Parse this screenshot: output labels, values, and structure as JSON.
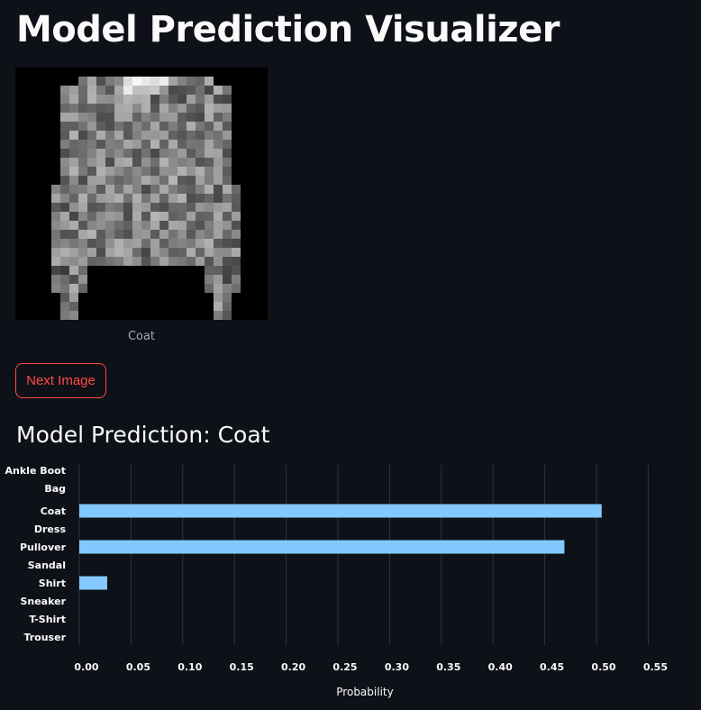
{
  "header": {
    "title": "Model Prediction Visualizer"
  },
  "image": {
    "caption": "Coat",
    "icon": "fashion-mnist-coat-image"
  },
  "controls": {
    "next_label": "Next Image"
  },
  "prediction": {
    "heading": "Model Prediction: Coat"
  },
  "colors": {
    "accent": "#ff4b4b",
    "bar": "#83c9ff",
    "background": "#0e1117",
    "grid": "#31333f"
  },
  "chart_data": {
    "type": "bar",
    "orientation": "horizontal",
    "categories": [
      "Ankle Boot",
      "Bag",
      "Coat",
      "Dress",
      "Pullover",
      "Sandal",
      "Shirt",
      "Sneaker",
      "T-Shirt",
      "Trouser"
    ],
    "values": [
      0.0,
      0.0,
      0.505,
      0.0,
      0.469,
      0.0,
      0.027,
      0.0,
      0.0,
      0.0
    ],
    "xlabel": "Probability",
    "ylabel": "",
    "xlim": [
      0,
      0.55
    ],
    "xticks": [
      "0.00",
      "0.05",
      "0.10",
      "0.15",
      "0.20",
      "0.25",
      "0.30",
      "0.35",
      "0.40",
      "0.45",
      "0.50",
      "0.55"
    ],
    "grid": true
  }
}
